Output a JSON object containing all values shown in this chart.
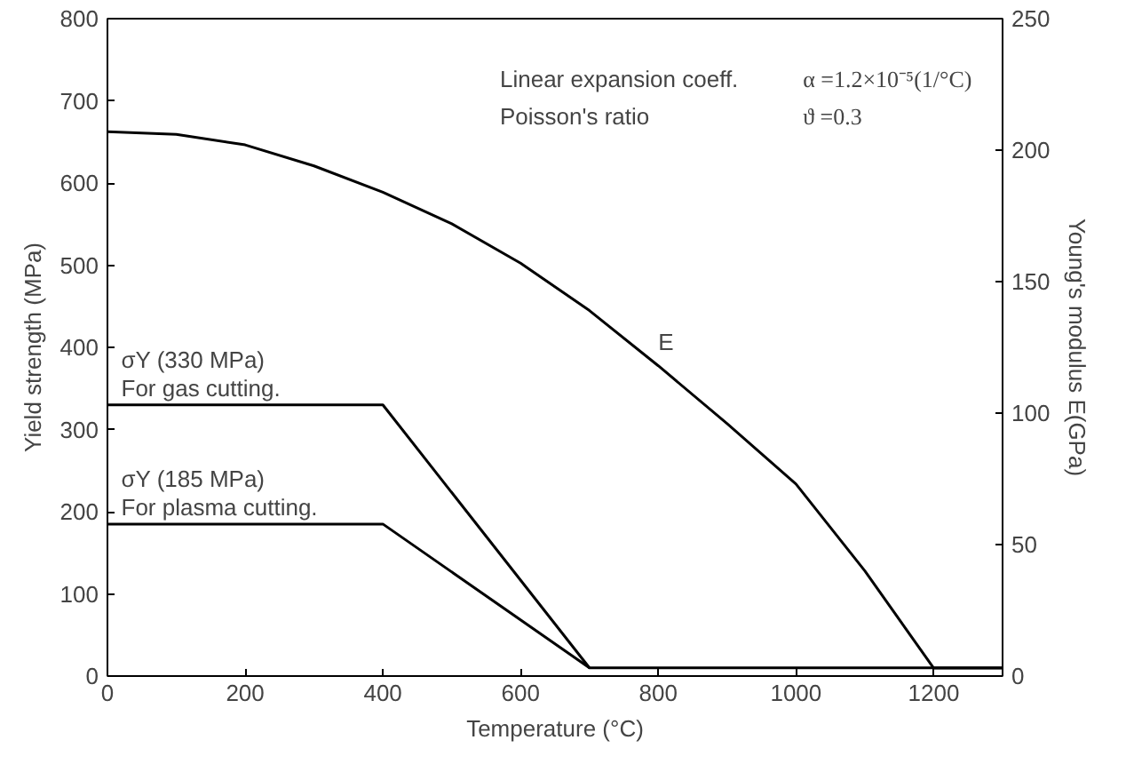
{
  "chart_data": {
    "type": "line",
    "xlabel": "Temperature (°C)",
    "ylabel": "Yield strength (MPa)",
    "y2label": "Young's modulus E(GPa)",
    "xlim": [
      0,
      1300
    ],
    "xticks": [
      0,
      200,
      400,
      600,
      800,
      1000,
      1200
    ],
    "ylim": [
      0,
      800
    ],
    "yticks": [
      0,
      100,
      200,
      300,
      400,
      500,
      600,
      700,
      800
    ],
    "y2lim": [
      0,
      250
    ],
    "y2ticks": [
      0,
      50,
      100,
      150,
      200,
      250
    ],
    "grid": false,
    "marker": "none",
    "line_style": "solid",
    "series": [
      {
        "color": "#000000",
        "x": [
          0,
          400,
          700,
          1300
        ],
        "values": [
          330,
          330,
          10,
          10
        ]
      },
      {
        "color": "#000000",
        "x": [
          0,
          400,
          700
        ],
        "values": [
          185,
          185,
          10
        ]
      },
      {
        "color": "#000000",
        "axis": "y2",
        "x": [
          0,
          100,
          200,
          300,
          400,
          500,
          600,
          700,
          800,
          900,
          1000,
          1100,
          1200,
          1300
        ],
        "values": [
          207,
          206,
          202,
          194,
          184,
          172,
          157,
          139,
          118,
          96,
          73,
          40,
          3,
          3
        ]
      }
    ],
    "annotations": [
      "σY (330 MPa)\nFor gas cutting.",
      "σY (185 MPa)\nFor plasma cutting.",
      "E",
      "Linear expansion coeff.",
      "α =1.2×10⁻⁵(1/°C)",
      "Poisson's ratio",
      "ϑ =0.3"
    ]
  }
}
